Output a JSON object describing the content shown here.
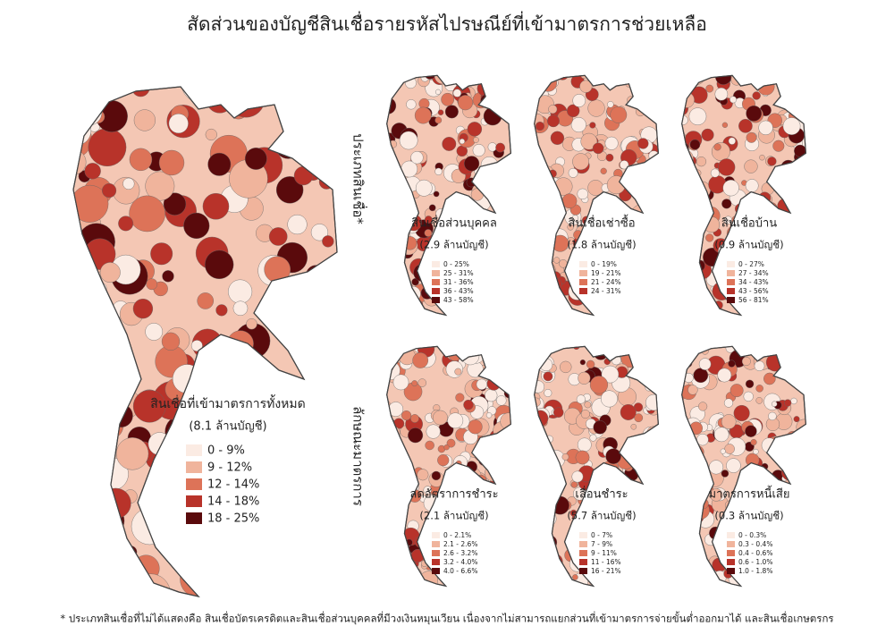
{
  "title": "สัดส่วนของบัญชีสินเชื่อรายรหัสไปรษณีย์ที่เข้ามาตรการช่วยเหลือ",
  "row_labels": [
    "ประเภทสินเชื่อ*",
    "ลักษณะมาตรการ"
  ],
  "legend_colors": [
    "#fbebe3",
    "#f0b49c",
    "#dd7358",
    "#b8332a",
    "#5a0a0c"
  ],
  "main_map": {
    "label": "สินเชื่อที่เข้ามาตรการทั้งหมด",
    "accounts": "(8.1 ล้านบัญชี)",
    "legend": [
      "0 - 9%",
      "9 - 12%",
      "12 - 14%",
      "14 - 18%",
      "18 - 25%"
    ]
  },
  "maps": [
    {
      "label": "สินเชื่อส่วนบุคคล",
      "accounts": "(2.9 ล้านบัญชี)",
      "legend": [
        "0 - 25%",
        "25 - 31%",
        "31 - 36%",
        "36 - 43%",
        "43 - 58%"
      ]
    },
    {
      "label": "สินเชื่อเช่าซื้อ",
      "accounts": "(1.8 ล้านบัญชี)",
      "legend": [
        "0 - 19%",
        "19 - 21%",
        "21 - 24%",
        "24 - 31%"
      ]
    },
    {
      "label": "สินเชื่อบ้าน",
      "accounts": "(0.9 ล้านบัญชี)",
      "legend": [
        "0 - 27%",
        "27 - 34%",
        "34 - 43%",
        "43 - 56%",
        "56 - 81%"
      ]
    },
    {
      "label": "ลดอัตราการชำระ",
      "accounts": "(2.1 ล้านบัญชี)",
      "legend": [
        "0 - 2.1%",
        "2.1 - 2.6%",
        "2.6 - 3.2%",
        "3.2 - 4.0%",
        "4.0 - 6.6%"
      ]
    },
    {
      "label": "เลื่อนชำระ",
      "accounts": "(5.7 ล้านบัญชี)",
      "legend": [
        "0 - 7%",
        "7 - 9%",
        "9 - 11%",
        "11 - 16%",
        "16 - 21%"
      ]
    },
    {
      "label": "มาตรการหนี้เสีย",
      "accounts": "(0.3 ล้านบัญชี)",
      "legend": [
        "0 - 0.3%",
        "0.3 - 0.4%",
        "0.4 - 0.6%",
        "0.6 - 1.0%",
        "1.0 - 1.8%"
      ]
    }
  ],
  "footnote": "* ประเภทสินเชื่อที่ไม่ได้แสดงคือ สินเชื่อบัตรเครดิตและสินเชื่อส่วนบุคคลที่มีวงเงินหมุนเวียน เนื่องจากไม่สามารถแยกส่วนที่เข้ามาตรการจ่ายขั้นต่ำออกมาได้ และสินเชื่อเกษตรกร"
}
